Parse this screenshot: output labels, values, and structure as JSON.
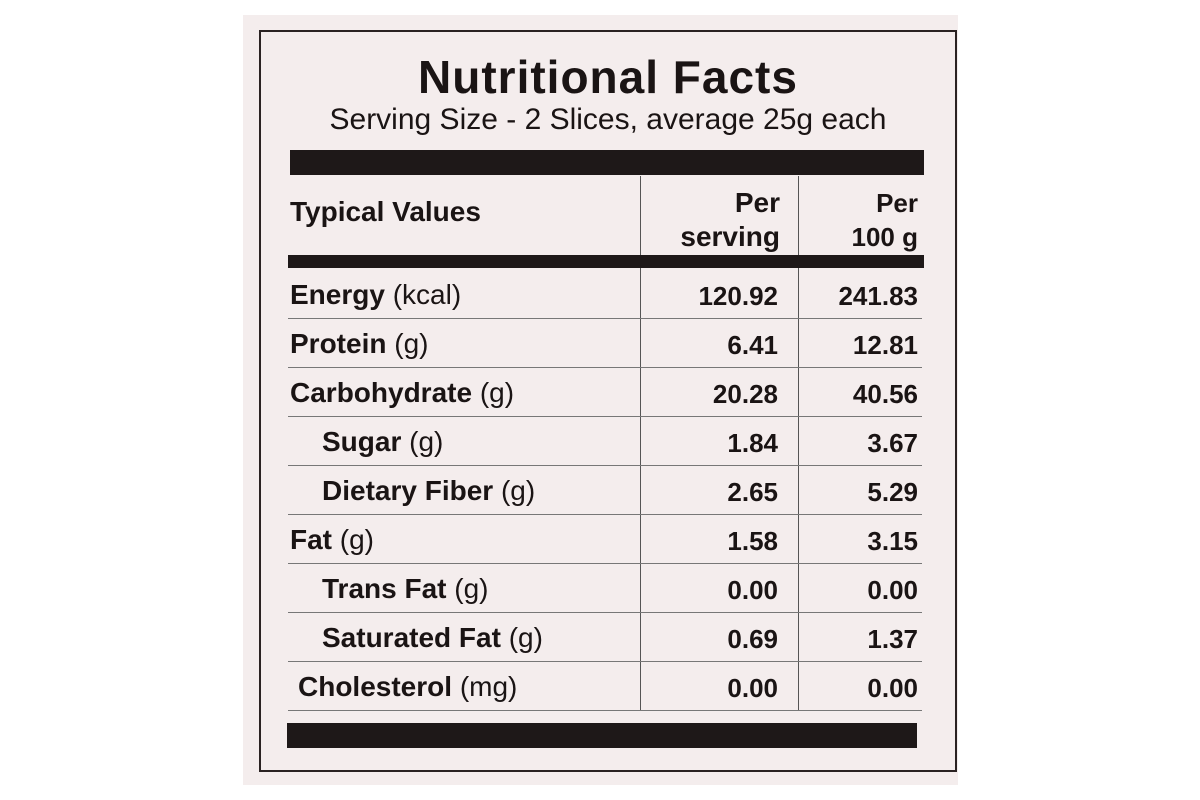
{
  "header": {
    "title": "Nutritional Facts",
    "serving_size": "Serving Size - 2 Slices, average 25g each"
  },
  "table": {
    "columns": {
      "name": "Typical Values",
      "per_serving": [
        "Per",
        "serving"
      ],
      "per_100g": [
        "Per",
        "100 g"
      ]
    },
    "rows": [
      {
        "name": "Energy",
        "unit": "(kcal)",
        "per_serving": "120.92",
        "per_100g": "241.83"
      },
      {
        "name": "Protein",
        "unit": "(g)",
        "per_serving": "6.41",
        "per_100g": "12.81"
      },
      {
        "name": "Carbohydrate",
        "unit": "(g)",
        "per_serving": "20.28",
        "per_100g": "40.56"
      },
      {
        "name": "Sugar",
        "unit": "(g)",
        "per_serving": "1.84",
        "per_100g": "3.67"
      },
      {
        "name": "Dietary Fiber",
        "unit": "(g)",
        "per_serving": "2.65",
        "per_100g": "5.29"
      },
      {
        "name": "Fat",
        "unit": "(g)",
        "per_serving": "1.58",
        "per_100g": "3.15"
      },
      {
        "name": "Trans Fat",
        "unit": "(g)",
        "per_serving": "0.00",
        "per_100g": "0.00"
      },
      {
        "name": "Saturated Fat",
        "unit": "(g)",
        "per_serving": "0.69",
        "per_100g": "1.37"
      },
      {
        "name": "Cholesterol",
        "unit": "(mg)",
        "per_serving": "0.00",
        "per_100g": "0.00"
      }
    ]
  }
}
